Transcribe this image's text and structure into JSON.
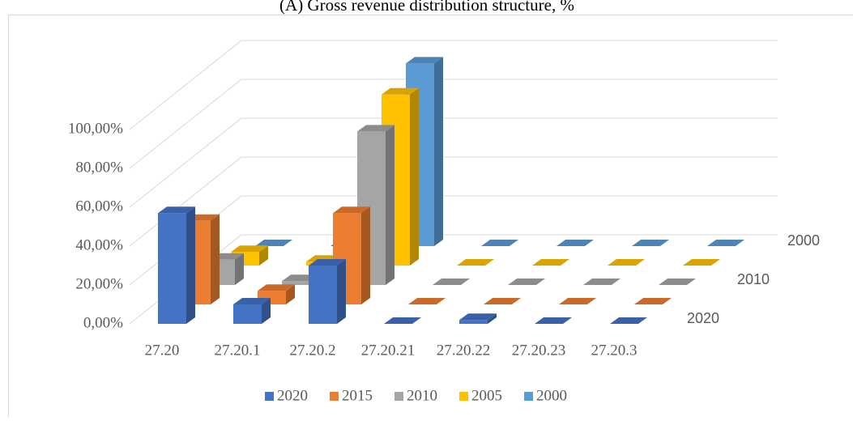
{
  "chart_data": {
    "type": "bar3d",
    "title": "(A) Gross revenue distribution structure, %",
    "categories": [
      "27.20",
      "27.20.1",
      "27.20.2",
      "27.20.21",
      "27.20.22",
      "27.20.23",
      "27.20.3"
    ],
    "depth_labels": [
      "2020",
      null,
      "2010",
      null,
      "2000"
    ],
    "series": [
      {
        "name": "2020",
        "color": "#4472c4",
        "values": [
          57,
          10,
          30,
          0,
          2,
          0,
          0
        ]
      },
      {
        "name": "2015",
        "color": "#ed7d31",
        "values": [
          43,
          7,
          47,
          0,
          0,
          0,
          0
        ]
      },
      {
        "name": "2010",
        "color": "#a5a5a5",
        "values": [
          13,
          2,
          79,
          0,
          0,
          0,
          0
        ]
      },
      {
        "name": "2005",
        "color": "#ffc000",
        "values": [
          7,
          2,
          88,
          0,
          0,
          0,
          0
        ]
      },
      {
        "name": "2000",
        "color": "#5b9bd5",
        "values": [
          0,
          0,
          94,
          0,
          0,
          0,
          0
        ]
      }
    ],
    "ylim": [
      0,
      140
    ],
    "yticks": [
      {
        "value": 0,
        "label": "0,00%"
      },
      {
        "value": 20,
        "label": "20,00%"
      },
      {
        "value": 40,
        "label": "40,00%"
      },
      {
        "value": 60,
        "label": "60,00%"
      },
      {
        "value": 80,
        "label": "80,00%"
      },
      {
        "value": 100,
        "label": "100,00%"
      }
    ],
    "grid": true,
    "legend": "bottom"
  }
}
